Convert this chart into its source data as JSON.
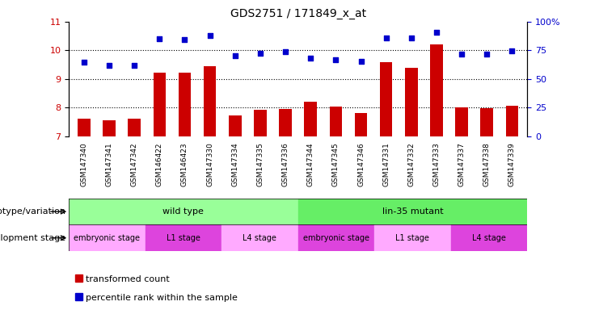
{
  "title": "GDS2751 / 171849_x_at",
  "samples": [
    "GSM147340",
    "GSM147341",
    "GSM147342",
    "GSM146422",
    "GSM146423",
    "GSM147330",
    "GSM147334",
    "GSM147335",
    "GSM147336",
    "GSM147344",
    "GSM147345",
    "GSM147346",
    "GSM147331",
    "GSM147332",
    "GSM147333",
    "GSM147337",
    "GSM147338",
    "GSM147339"
  ],
  "bar_values": [
    7.62,
    7.55,
    7.62,
    9.22,
    9.22,
    9.45,
    7.72,
    7.92,
    7.95,
    8.22,
    8.05,
    7.82,
    9.6,
    9.38,
    10.22,
    8.02,
    7.98,
    8.08
  ],
  "dot_values": [
    9.6,
    9.48,
    9.48,
    10.4,
    10.38,
    10.52,
    9.82,
    9.9,
    9.95,
    9.72,
    9.68,
    9.62,
    10.42,
    10.42,
    10.62,
    9.88,
    9.88,
    9.98
  ],
  "bar_color": "#cc0000",
  "dot_color": "#0000cc",
  "ylim_left": [
    7,
    11
  ],
  "ylim_right": [
    0,
    100
  ],
  "yticks_left": [
    7,
    8,
    9,
    10,
    11
  ],
  "yticks_right": [
    0,
    25,
    50,
    75,
    100
  ],
  "genotype_groups": [
    {
      "label": "wild type",
      "start": 0,
      "end": 9,
      "color": "#99ff99"
    },
    {
      "label": "lin-35 mutant",
      "start": 9,
      "end": 18,
      "color": "#66ee66"
    }
  ],
  "stage_groups": [
    {
      "label": "embryonic stage",
      "start": 0,
      "end": 3,
      "color": "#ffaaff"
    },
    {
      "label": "L1 stage",
      "start": 3,
      "end": 6,
      "color": "#dd44dd"
    },
    {
      "label": "L4 stage",
      "start": 6,
      "end": 9,
      "color": "#ffaaff"
    },
    {
      "label": "embryonic stage",
      "start": 9,
      "end": 12,
      "color": "#dd44dd"
    },
    {
      "label": "L1 stage",
      "start": 12,
      "end": 15,
      "color": "#ffaaff"
    },
    {
      "label": "L4 stage",
      "start": 15,
      "end": 18,
      "color": "#dd44dd"
    }
  ],
  "genotype_label": "genotype/variation",
  "stage_label": "development stage",
  "legend_bar": "transformed count",
  "legend_dot": "percentile rank within the sample",
  "background_color": "#ffffff"
}
